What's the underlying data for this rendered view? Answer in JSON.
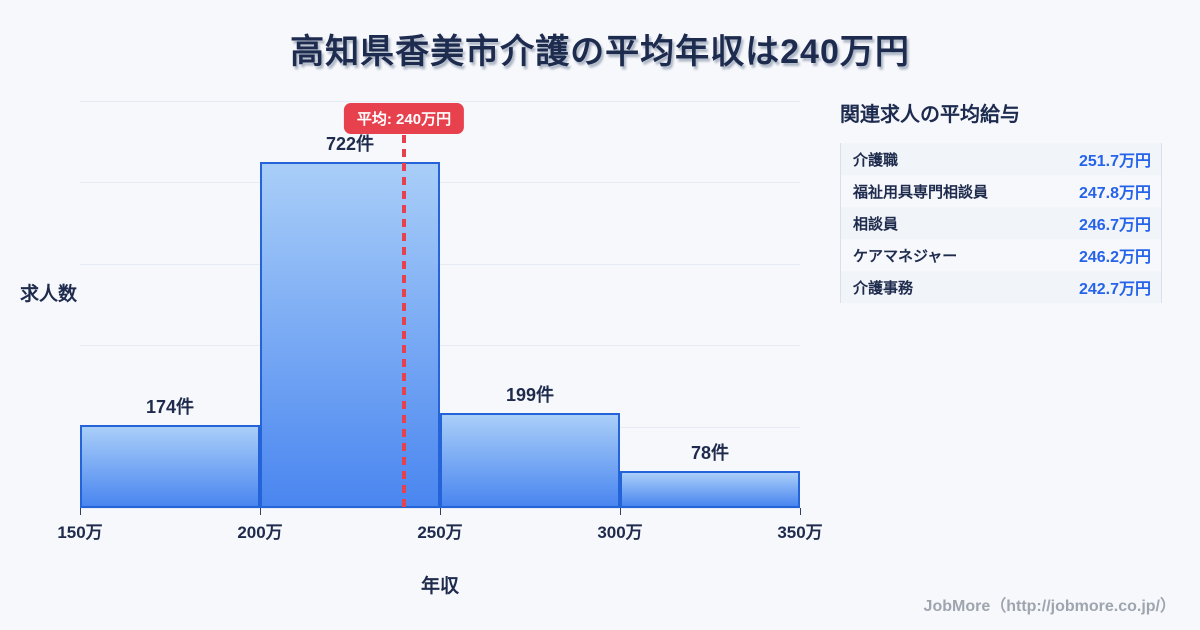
{
  "title": "高知県香美市介護の平均年収は240万円",
  "chart_data": {
    "type": "bar",
    "categories": [
      "150万-200万",
      "200万-250万",
      "250万-300万",
      "300万-350万"
    ],
    "values": [
      174,
      722,
      199,
      78
    ],
    "bar_labels": [
      "174件",
      "722件",
      "199件",
      "78件"
    ],
    "x_tick_labels": [
      "150万",
      "200万",
      "250万",
      "300万",
      "350万"
    ],
    "x_range": [
      150,
      350
    ],
    "title": "高知県香美市介護の平均年収は240万円",
    "xlabel": "年収",
    "ylabel": "求人数",
    "ylim": [
      0,
      850
    ],
    "grid": true,
    "legend": "none",
    "average_line": {
      "value": 240,
      "label": "平均: 240万円"
    }
  },
  "related_jobs": {
    "title": "関連求人の平均給与",
    "rows": [
      {
        "label": "介護職",
        "value": "251.7万円"
      },
      {
        "label": "福祉用具専門相談員",
        "value": "247.8万円"
      },
      {
        "label": "相談員",
        "value": "246.7万円"
      },
      {
        "label": "ケアマネジャー",
        "value": "246.2万円"
      },
      {
        "label": "介護事務",
        "value": "242.7万円"
      }
    ]
  },
  "footer": {
    "credit": "JobMore（http://jobmore.co.jp/）"
  },
  "colors": {
    "background": "#f7f8fc",
    "bar_gradient_top": "#a9cef8",
    "bar_gradient_bottom": "#4a86f0",
    "bar_border": "#2563d8",
    "accent_red": "#e8414e",
    "value_blue": "#2563eb",
    "text_dark": "#1e2b4d",
    "gridline": "#e7ebf3"
  }
}
